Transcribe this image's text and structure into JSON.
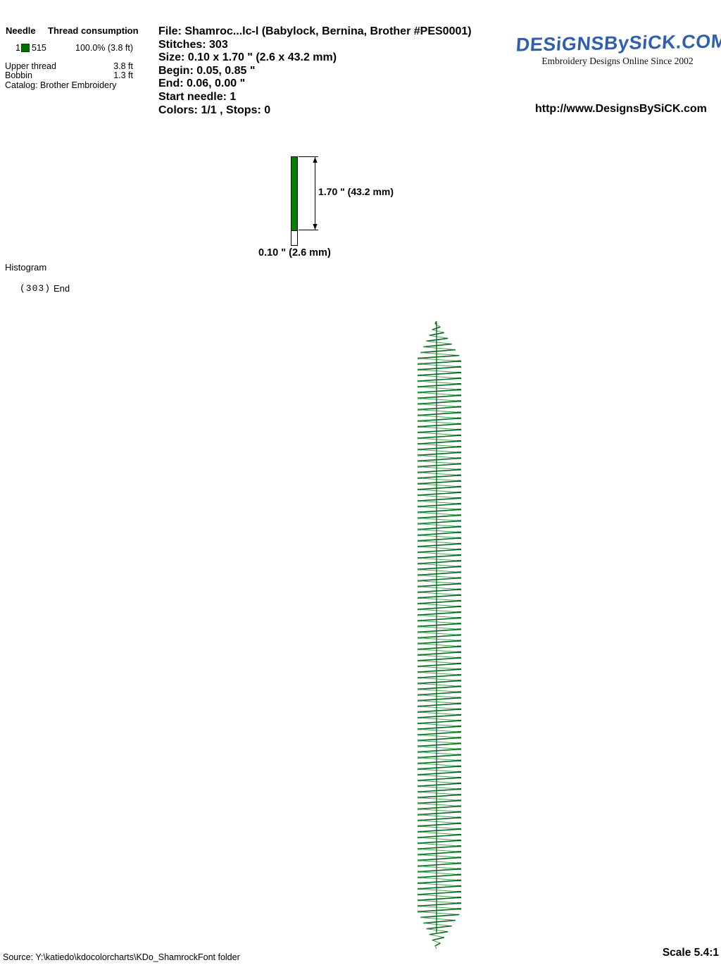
{
  "thread_table": {
    "col_needle": "Needle",
    "col_consumption": "Thread consumption",
    "rows": [
      {
        "needle": "1",
        "color": "#007000",
        "code": "515",
        "consumption": "100.0% (3.8 ft)"
      }
    ],
    "upper_thread_label": "Upper thread",
    "upper_thread_value": "3.8 ft",
    "bobbin_label": "Bobbin",
    "bobbin_value": "1.3 ft",
    "catalog": "Catalog: Brother Embroidery"
  },
  "file_info": {
    "file": "File: Shamroc...lc-l  (Babylock, Bernina, Brother #PES0001)",
    "stitches": "Stitches: 303",
    "size": "Size: 0.10 x 1.70 \" (2.6 x 43.2 mm)",
    "begin": "Begin: 0.05, 0.85 \"",
    "end": "End: 0.06, 0.00 \"",
    "start_needle": "Start needle: 1",
    "colors": "Colors: 1/1 , Stops: 0"
  },
  "branding": {
    "logo_text": "DESiGNSBySiCK.COM",
    "tagline": "Embroidery Designs Online Since 2002",
    "url": "http://www.DesignsBySiCK.com",
    "logo_color": "#3060ad"
  },
  "design_preview": {
    "height_label": "1.70 \" (43.2 mm)",
    "width_label": "0.10 \" (2.6 mm)",
    "bar_color": "#028002",
    "stitch_dark": "#076b23",
    "stitch_light": "#46a04f"
  },
  "histogram": {
    "title": "Histogram",
    "count": "(303)",
    "end_label": "End"
  },
  "footer": {
    "source": "Source: Y:\\katiedo\\kdocolorcharts\\KDo_ShamrockFont folder",
    "scale": "Scale 5.4:1"
  }
}
